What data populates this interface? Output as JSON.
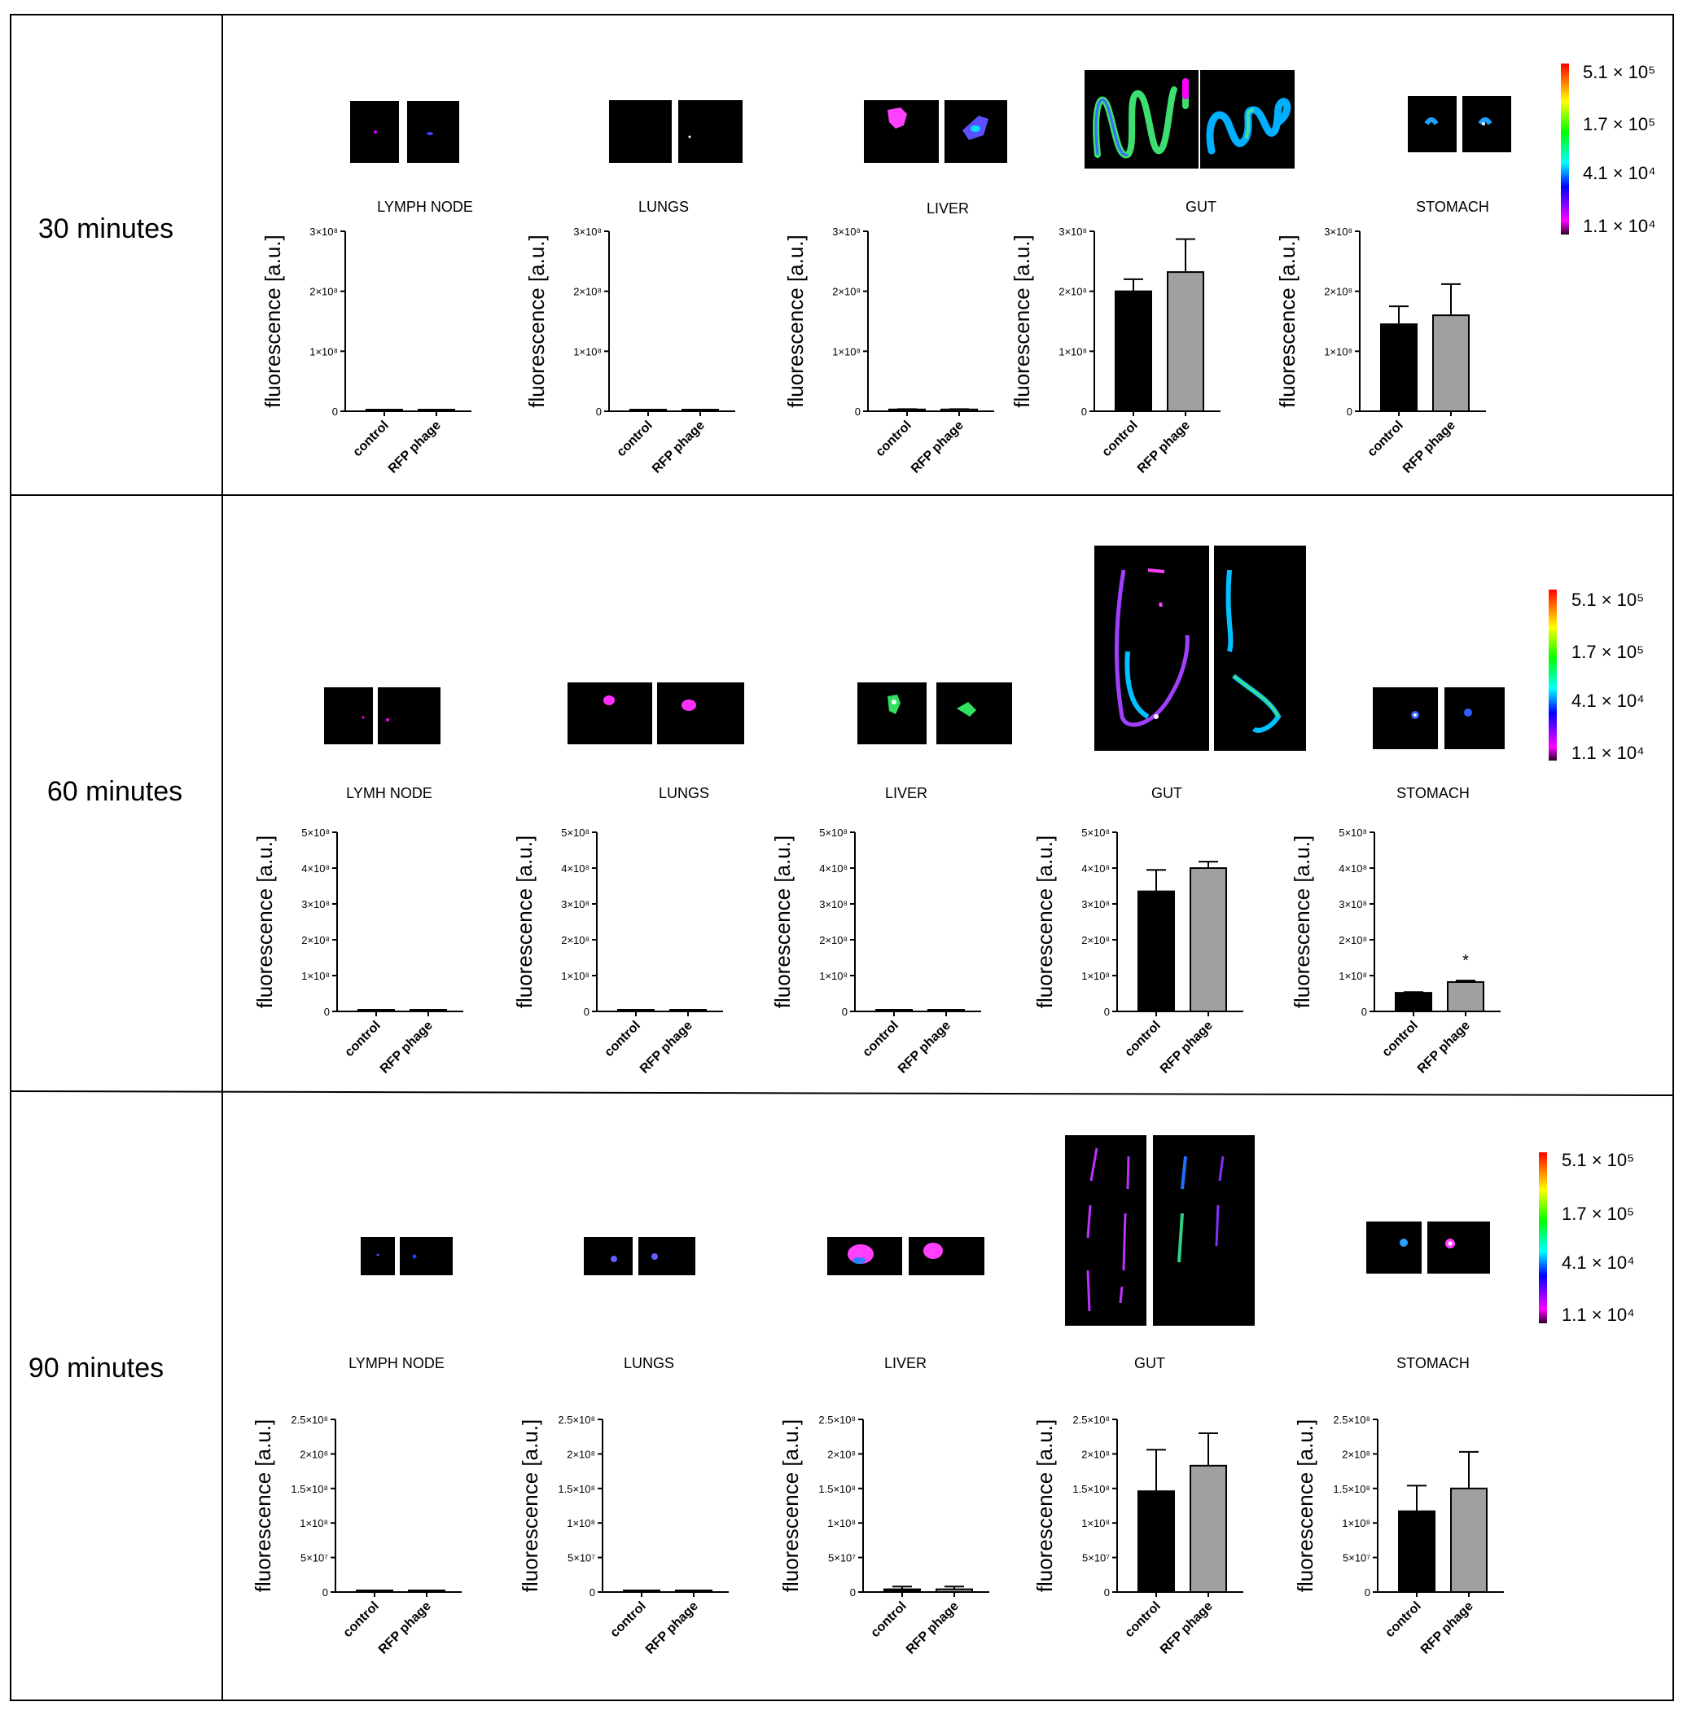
{
  "axis": {
    "ylabel": "fluorescence [a.u.]",
    "categories": [
      "control",
      "RFP phage"
    ]
  },
  "colorbar": {
    "labels": [
      "5.1 × 10⁵",
      "1.7 × 10⁵",
      "4.1 × 10⁴",
      "1.1 × 10⁴"
    ]
  },
  "colors": {
    "control": "#000000",
    "rfp": "#a0a0a0",
    "scale": [
      "#ff0000",
      "#ffff00",
      "#00ff00",
      "#00ffff",
      "#0000ff",
      "#ff00ff",
      "#000000"
    ]
  },
  "rows": [
    {
      "label": "30 minutes",
      "yticks": [
        "0",
        "1×10⁸",
        "2×10⁸",
        "3×10⁸"
      ]
    },
    {
      "label": "60 minutes",
      "yticks": [
        "0",
        "1×10⁸",
        "2×10⁸",
        "3×10⁸",
        "4×10⁸",
        "5×10⁸"
      ]
    },
    {
      "label": "90 minutes",
      "yticks": [
        "0",
        "5×10⁷",
        "1×10⁸",
        "1.5×10⁸",
        "2×10⁸",
        "2.5×10⁸"
      ]
    }
  ],
  "chart_data": [
    {
      "type": "bar",
      "title": "LYMPH NODE",
      "time": "30 minutes",
      "ylabel": "fluorescence [a.u.]",
      "categories": [
        "control",
        "RFP phage"
      ],
      "values": [
        500000.0,
        500000.0
      ],
      "errors": [
        0,
        0
      ],
      "ylim": [
        0,
        300000000.0
      ]
    },
    {
      "type": "bar",
      "title": "LUNGS",
      "time": "30 minutes",
      "ylabel": "fluorescence [a.u.]",
      "categories": [
        "control",
        "RFP phage"
      ],
      "values": [
        800000.0,
        800000.0
      ],
      "errors": [
        0,
        0
      ],
      "ylim": [
        0,
        300000000.0
      ]
    },
    {
      "type": "bar",
      "title": "LIVER",
      "time": "30 minutes",
      "ylabel": "fluorescence [a.u.]",
      "categories": [
        "control",
        "RFP phage"
      ],
      "values": [
        3000000.0,
        3000000.0
      ],
      "errors": [
        500000.0,
        500000.0
      ],
      "ylim": [
        0,
        300000000.0
      ]
    },
    {
      "type": "bar",
      "title": "GUT",
      "time": "30 minutes",
      "ylabel": "fluorescence [a.u.]",
      "categories": [
        "control",
        "RFP phage"
      ],
      "values": [
        200000000.0,
        232000000.0
      ],
      "errors": [
        20000000.0,
        55000000.0
      ],
      "ylim": [
        0,
        300000000.0
      ]
    },
    {
      "type": "bar",
      "title": "STOMACH",
      "time": "30 minutes",
      "ylabel": "fluorescence [a.u.]",
      "categories": [
        "control",
        "RFP phage"
      ],
      "values": [
        145000000.0,
        160000000.0
      ],
      "errors": [
        30000000.0,
        52000000.0
      ],
      "ylim": [
        0,
        300000000.0
      ]
    },
    {
      "type": "bar",
      "title": "LYMH NODE",
      "time": "60 minutes",
      "ylabel": "fluorescence [a.u.]",
      "categories": [
        "control",
        "RFP phage"
      ],
      "values": [
        500000.0,
        500000.0
      ],
      "errors": [
        0,
        0
      ],
      "ylim": [
        0,
        500000000.0
      ]
    },
    {
      "type": "bar",
      "title": "LUNGS",
      "time": "60 minutes",
      "ylabel": "fluorescence [a.u.]",
      "categories": [
        "control",
        "RFP phage"
      ],
      "values": [
        500000.0,
        500000.0
      ],
      "errors": [
        0,
        0
      ],
      "ylim": [
        0,
        500000000.0
      ]
    },
    {
      "type": "bar",
      "title": "LIVER",
      "time": "60 minutes",
      "ylabel": "fluorescence [a.u.]",
      "categories": [
        "control",
        "RFP phage"
      ],
      "values": [
        3000000.0,
        3000000.0
      ],
      "errors": [
        1000000.0,
        1000000.0
      ],
      "ylim": [
        0,
        500000000.0
      ]
    },
    {
      "type": "bar",
      "title": "GUT",
      "time": "60 minutes",
      "ylabel": "fluorescence [a.u.]",
      "categories": [
        "control",
        "RFP phage"
      ],
      "values": [
        335000000.0,
        400000000.0
      ],
      "errors": [
        60000000.0,
        18000000.0
      ],
      "ylim": [
        0,
        500000000.0
      ]
    },
    {
      "type": "bar",
      "title": "STOMACH",
      "time": "60 minutes",
      "ylabel": "fluorescence [a.u.]",
      "categories": [
        "control",
        "RFP phage"
      ],
      "values": [
        52000000.0,
        82000000.0
      ],
      "errors": [
        2000000.0,
        4000000.0
      ],
      "ylim": [
        0,
        500000000.0
      ],
      "annotation": "*"
    },
    {
      "type": "bar",
      "title": "LYMPH NODE",
      "time": "90 minutes",
      "ylabel": "fluorescence [a.u.]",
      "categories": [
        "control",
        "RFP phage"
      ],
      "values": [
        300000.0,
        300000.0
      ],
      "errors": [
        0,
        0
      ],
      "ylim": [
        0,
        250000000.0
      ]
    },
    {
      "type": "bar",
      "title": "LUNGS",
      "time": "90 minutes",
      "ylabel": "fluorescence [a.u.]",
      "categories": [
        "control",
        "RFP phage"
      ],
      "values": [
        1500000.0,
        1500000.0
      ],
      "errors": [
        400000.0,
        400000.0
      ],
      "ylim": [
        0,
        250000000.0
      ]
    },
    {
      "type": "bar",
      "title": "LIVER",
      "time": "90 minutes",
      "ylabel": "fluorescence [a.u.]",
      "categories": [
        "control",
        "RFP phage"
      ],
      "values": [
        4000000.0,
        4000000.0
      ],
      "errors": [
        4000000.0,
        4000000.0
      ],
      "ylim": [
        0,
        250000000.0
      ]
    },
    {
      "type": "bar",
      "title": "GUT",
      "time": "90 minutes",
      "ylabel": "fluorescence [a.u.]",
      "categories": [
        "control",
        "RFP phage"
      ],
      "values": [
        146000000.0,
        183000000.0
      ],
      "errors": [
        60000000.0,
        47000000.0
      ],
      "ylim": [
        0,
        250000000.0
      ]
    },
    {
      "type": "bar",
      "title": "STOMACH",
      "time": "90 minutes",
      "ylabel": "fluorescence [a.u.]",
      "categories": [
        "control",
        "RFP phage"
      ],
      "values": [
        117000000.0,
        150000000.0
      ],
      "errors": [
        37000000.0,
        53000000.0
      ],
      "ylim": [
        0,
        250000000.0
      ]
    }
  ]
}
